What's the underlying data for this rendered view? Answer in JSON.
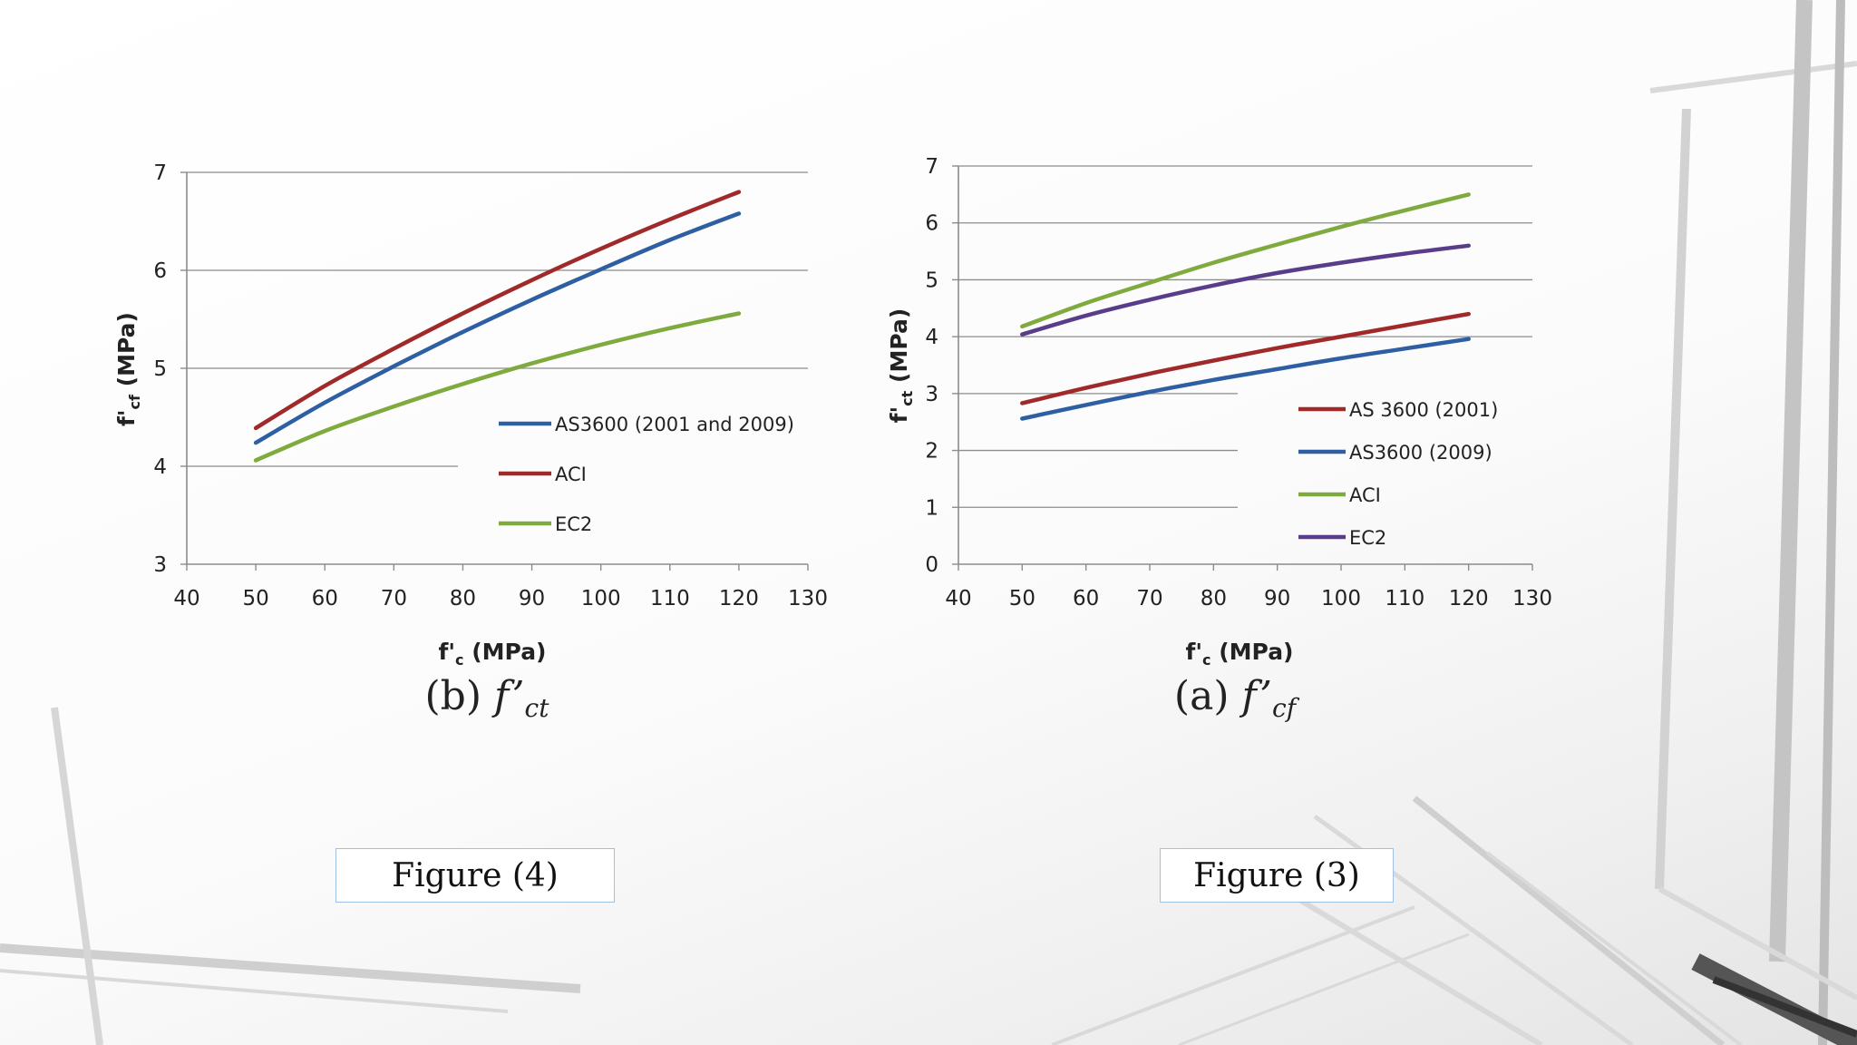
{
  "chart_data": [
    {
      "type": "line",
      "caption": "(b) f’ct",
      "caption_label": "(b)",
      "caption_symbol": "f’",
      "caption_subscript": "ct",
      "xlabel": "f'c (MPa)",
      "xlabel_main": "f'",
      "xlabel_sub": "c",
      "xlabel_unit": "(MPa)",
      "ylabel": "f'cf (MPa)",
      "ylabel_main": "f'",
      "ylabel_sub": "cf",
      "ylabel_unit": "(MPa)",
      "xlim": [
        40,
        130
      ],
      "ylim": [
        3,
        7
      ],
      "xticks": [
        40,
        50,
        60,
        70,
        80,
        90,
        100,
        110,
        120,
        130
      ],
      "yticks": [
        3,
        4,
        5,
        6,
        7
      ],
      "grid": "horizontal",
      "legend_position": "lower-right",
      "series": [
        {
          "name": "AS3600 (2001 and 2009)",
          "color": "#2e5fa3",
          "x": [
            50,
            60,
            70,
            80,
            90,
            100,
            110,
            120
          ],
          "y": [
            4.24,
            4.65,
            5.02,
            5.37,
            5.7,
            6.01,
            6.31,
            6.58
          ]
        },
        {
          "name": "ACI",
          "color": "#a02a2a",
          "x": [
            50,
            60,
            70,
            80,
            90,
            100,
            110,
            120
          ],
          "y": [
            4.39,
            4.82,
            5.2,
            5.56,
            5.9,
            6.22,
            6.52,
            6.8
          ]
        },
        {
          "name": "EC2",
          "color": "#7fab3e",
          "x": [
            50,
            60,
            70,
            80,
            90,
            100,
            110,
            120
          ],
          "y": [
            4.06,
            4.36,
            4.61,
            4.84,
            5.05,
            5.24,
            5.41,
            5.56
          ]
        }
      ]
    },
    {
      "type": "line",
      "caption": "(a) f’cf",
      "caption_label": "(a)",
      "caption_symbol": "f’",
      "caption_subscript": "cf",
      "xlabel": "f'c (MPa)",
      "xlabel_main": "f'",
      "xlabel_sub": "c",
      "xlabel_unit": "(MPa)",
      "ylabel": "f'ct (MPa)",
      "ylabel_main": "f'",
      "ylabel_sub": "ct",
      "ylabel_unit": "(MPa)",
      "xlim": [
        40,
        130
      ],
      "ylim": [
        0,
        7
      ],
      "xticks": [
        40,
        50,
        60,
        70,
        80,
        90,
        100,
        110,
        120,
        130
      ],
      "yticks": [
        0,
        1,
        2,
        3,
        4,
        5,
        6,
        7
      ],
      "grid": "horizontal",
      "legend_position": "lower-right",
      "series": [
        {
          "name": "AS 3600 (2001)",
          "color": "#a02a2a",
          "x": [
            50,
            60,
            70,
            80,
            90,
            100,
            110,
            120
          ],
          "y": [
            2.83,
            3.1,
            3.35,
            3.58,
            3.8,
            4.0,
            4.2,
            4.4
          ]
        },
        {
          "name": "AS3600 (2009)",
          "color": "#2e5fa3",
          "x": [
            50,
            60,
            70,
            80,
            90,
            100,
            110,
            120
          ],
          "y": [
            2.56,
            2.8,
            3.03,
            3.24,
            3.43,
            3.62,
            3.79,
            3.96
          ]
        },
        {
          "name": "ACI",
          "color": "#7fab3e",
          "x": [
            50,
            60,
            70,
            80,
            90,
            100,
            110,
            120
          ],
          "y": [
            4.18,
            4.59,
            4.95,
            5.3,
            5.62,
            5.93,
            6.22,
            6.5
          ]
        },
        {
          "name": "EC2",
          "color": "#5a3d8a",
          "x": [
            50,
            60,
            70,
            80,
            90,
            100,
            110,
            120
          ],
          "y": [
            4.04,
            4.37,
            4.65,
            4.9,
            5.12,
            5.3,
            5.46,
            5.6
          ]
        }
      ]
    }
  ],
  "figure_labels": [
    "Figure (4)",
    "Figure (3)"
  ]
}
